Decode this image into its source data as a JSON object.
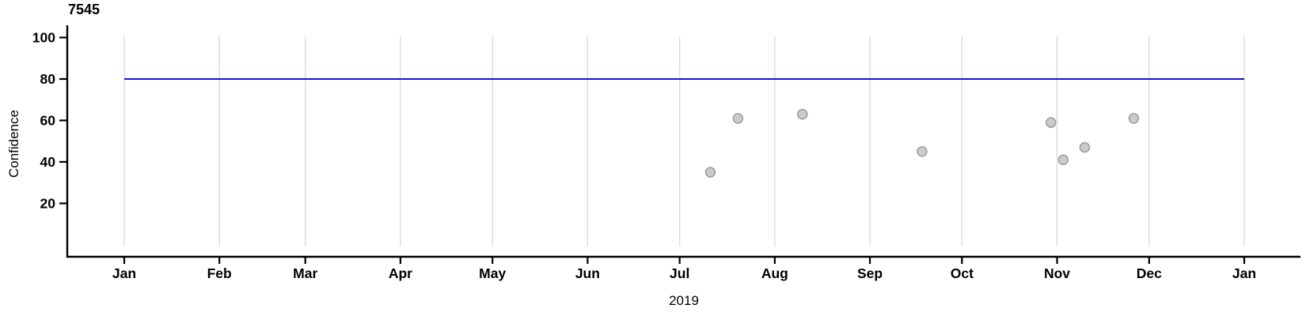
{
  "chart_data": {
    "type": "scatter",
    "title": "7545",
    "ylabel": "Confidence",
    "xlabel": "2019",
    "x_axis": {
      "start": "2019-01-01",
      "end": "2020-01-01",
      "tick_labels": [
        "Jan",
        "Feb",
        "Mar",
        "Apr",
        "May",
        "Jun",
        "Jul",
        "Aug",
        "Sep",
        "Oct",
        "Nov",
        "Dec",
        "Jan"
      ]
    },
    "y_axis": {
      "ticks": [
        20,
        40,
        60,
        80,
        100
      ],
      "visible_range": [
        0,
        105
      ]
    },
    "grid": "vertical-monthly",
    "legend": "none",
    "points": [
      {
        "date": "2019-07-11",
        "value": 35
      },
      {
        "date": "2019-07-20",
        "value": 61
      },
      {
        "date": "2019-08-10",
        "value": 63
      },
      {
        "date": "2019-09-18",
        "value": 45
      },
      {
        "date": "2019-10-30",
        "value": 59
      },
      {
        "date": "2019-11-03",
        "value": 41
      },
      {
        "date": "2019-11-10",
        "value": 47
      },
      {
        "date": "2019-11-26",
        "value": 61
      }
    ],
    "reference_line": {
      "value": 80,
      "color": "#1414CD"
    },
    "colors": {
      "point_fill": "#CBCBCB",
      "point_stroke": "#969696",
      "grid": "#D9D9D9",
      "axis": "#000000",
      "text": "#000000",
      "background": "#FFFFFF"
    }
  }
}
